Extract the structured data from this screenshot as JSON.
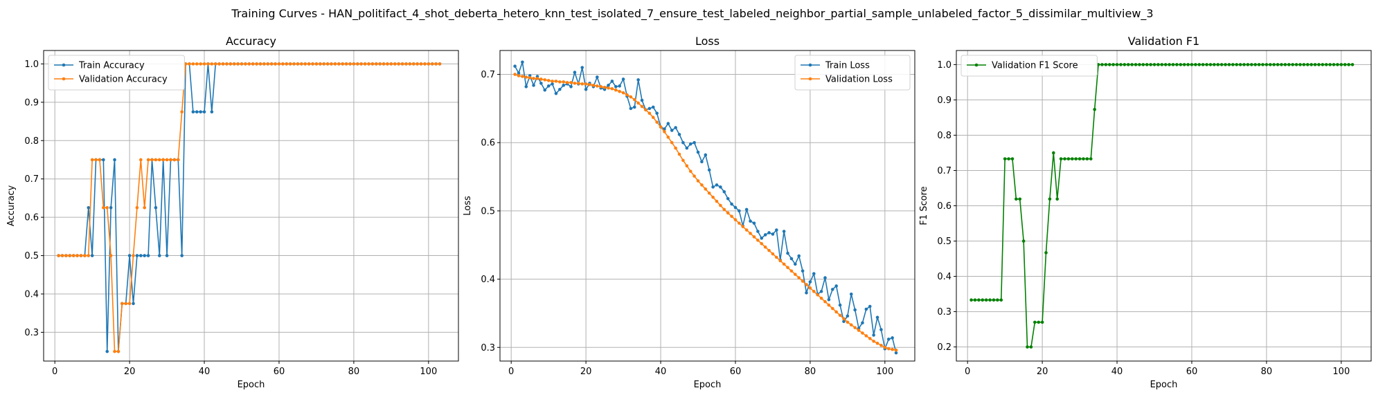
{
  "figure": {
    "title": "Training Curves - HAN_politifact_4_shot_deberta_hetero_knn_test_isolated_7_ensure_test_labeled_neighbor_partial_sample_unlabeled_factor_5_dissimilar_multiview_3"
  },
  "colors": {
    "blue": "#1f77b4",
    "orange": "#ff7f0e",
    "green": "#008000",
    "grid": "#b0b0b0"
  },
  "chart_data": [
    {
      "type": "line",
      "title": "Accuracy",
      "xlabel": "Epoch",
      "ylabel": "Accuracy",
      "xlim": [
        -3,
        108
      ],
      "ylim": [
        0.225,
        1.035
      ],
      "xticks": [
        0,
        20,
        40,
        60,
        80,
        100
      ],
      "yticks": [
        0.3,
        0.4,
        0.5,
        0.6,
        0.7,
        0.8,
        0.9,
        1.0
      ],
      "grid": true,
      "legend": "upper left",
      "x": [
        1,
        2,
        3,
        4,
        5,
        6,
        7,
        8,
        9,
        10,
        11,
        12,
        13,
        14,
        15,
        16,
        17,
        18,
        19,
        20,
        21,
        22,
        23,
        24,
        25,
        26,
        27,
        28,
        29,
        30,
        31,
        32,
        33,
        34,
        35,
        36,
        37,
        38,
        39,
        40,
        41,
        42,
        43,
        44,
        45,
        46,
        47,
        48,
        49,
        50,
        51,
        52,
        53,
        54,
        55,
        56,
        57,
        58,
        59,
        60,
        61,
        62,
        63,
        64,
        65,
        66,
        67,
        68,
        69,
        70,
        71,
        72,
        73,
        74,
        75,
        76,
        77,
        78,
        79,
        80,
        81,
        82,
        83,
        84,
        85,
        86,
        87,
        88,
        89,
        90,
        91,
        92,
        93,
        94,
        95,
        96,
        97,
        98,
        99,
        100,
        101,
        102,
        103
      ],
      "series": [
        {
          "name": "Train Accuracy",
          "color": "#1f77b4",
          "values": [
            0.5,
            0.5,
            0.5,
            0.5,
            0.5,
            0.5,
            0.5,
            0.5,
            0.625,
            0.5,
            0.75,
            0.75,
            0.75,
            0.25,
            0.625,
            0.75,
            0.25,
            0.375,
            0.375,
            0.5,
            0.375,
            0.5,
            0.5,
            0.5,
            0.5,
            0.75,
            0.625,
            0.5,
            0.75,
            0.5,
            0.75,
            0.75,
            0.75,
            0.5,
            1.0,
            1.0,
            0.875,
            0.875,
            0.875,
            0.875,
            1.0,
            0.875,
            1.0,
            1.0,
            1.0,
            1.0,
            1.0,
            1.0,
            1.0,
            1.0,
            1.0,
            1.0,
            1.0,
            1.0,
            1.0,
            1.0,
            1.0,
            1.0,
            1.0,
            1.0,
            1.0,
            1.0,
            1.0,
            1.0,
            1.0,
            1.0,
            1.0,
            1.0,
            1.0,
            1.0,
            1.0,
            1.0,
            1.0,
            1.0,
            1.0,
            1.0,
            1.0,
            1.0,
            1.0,
            1.0,
            1.0,
            1.0,
            1.0,
            1.0,
            1.0,
            1.0,
            1.0,
            1.0,
            1.0,
            1.0,
            1.0,
            1.0,
            1.0,
            1.0,
            1.0,
            1.0,
            1.0,
            1.0,
            1.0,
            1.0,
            1.0,
            1.0,
            1.0
          ]
        },
        {
          "name": "Validation Accuracy",
          "color": "#ff7f0e",
          "values": [
            0.5,
            0.5,
            0.5,
            0.5,
            0.5,
            0.5,
            0.5,
            0.5,
            0.5,
            0.75,
            0.75,
            0.75,
            0.625,
            0.625,
            0.5,
            0.25,
            0.25,
            0.375,
            0.375,
            0.375,
            0.5,
            0.625,
            0.75,
            0.625,
            0.75,
            0.75,
            0.75,
            0.75,
            0.75,
            0.75,
            0.75,
            0.75,
            0.75,
            0.875,
            1.0,
            1.0,
            1.0,
            1.0,
            1.0,
            1.0,
            1.0,
            1.0,
            1.0,
            1.0,
            1.0,
            1.0,
            1.0,
            1.0,
            1.0,
            1.0,
            1.0,
            1.0,
            1.0,
            1.0,
            1.0,
            1.0,
            1.0,
            1.0,
            1.0,
            1.0,
            1.0,
            1.0,
            1.0,
            1.0,
            1.0,
            1.0,
            1.0,
            1.0,
            1.0,
            1.0,
            1.0,
            1.0,
            1.0,
            1.0,
            1.0,
            1.0,
            1.0,
            1.0,
            1.0,
            1.0,
            1.0,
            1.0,
            1.0,
            1.0,
            1.0,
            1.0,
            1.0,
            1.0,
            1.0,
            1.0,
            1.0,
            1.0,
            1.0,
            1.0,
            1.0,
            1.0,
            1.0,
            1.0,
            1.0,
            1.0,
            1.0,
            1.0,
            1.0
          ]
        }
      ]
    },
    {
      "type": "line",
      "title": "Loss",
      "xlabel": "Epoch",
      "ylabel": "Loss",
      "xlim": [
        -3,
        108
      ],
      "ylim": [
        0.28,
        0.735
      ],
      "xticks": [
        0,
        20,
        40,
        60,
        80,
        100
      ],
      "yticks": [
        0.3,
        0.4,
        0.5,
        0.6,
        0.7
      ],
      "grid": true,
      "legend": "upper right",
      "x": [
        1,
        2,
        3,
        4,
        5,
        6,
        7,
        8,
        9,
        10,
        11,
        12,
        13,
        14,
        15,
        16,
        17,
        18,
        19,
        20,
        21,
        22,
        23,
        24,
        25,
        26,
        27,
        28,
        29,
        30,
        31,
        32,
        33,
        34,
        35,
        36,
        37,
        38,
        39,
        40,
        41,
        42,
        43,
        44,
        45,
        46,
        47,
        48,
        49,
        50,
        51,
        52,
        53,
        54,
        55,
        56,
        57,
        58,
        59,
        60,
        61,
        62,
        63,
        64,
        65,
        66,
        67,
        68,
        69,
        70,
        71,
        72,
        73,
        74,
        75,
        76,
        77,
        78,
        79,
        80,
        81,
        82,
        83,
        84,
        85,
        86,
        87,
        88,
        89,
        90,
        91,
        92,
        93,
        94,
        95,
        96,
        97,
        98,
        99,
        100,
        101,
        102,
        103
      ],
      "series": [
        {
          "name": "Train Loss",
          "color": "#1f77b4",
          "values": [
            0.712,
            0.702,
            0.718,
            0.682,
            0.698,
            0.684,
            0.697,
            0.687,
            0.677,
            0.683,
            0.686,
            0.672,
            0.678,
            0.684,
            0.686,
            0.682,
            0.703,
            0.686,
            0.71,
            0.678,
            0.687,
            0.682,
            0.696,
            0.68,
            0.678,
            0.684,
            0.69,
            0.682,
            0.683,
            0.693,
            0.668,
            0.65,
            0.652,
            0.692,
            0.662,
            0.648,
            0.65,
            0.652,
            0.643,
            0.623,
            0.62,
            0.628,
            0.618,
            0.622,
            0.612,
            0.6,
            0.592,
            0.598,
            0.6,
            0.586,
            0.572,
            0.582,
            0.56,
            0.535,
            0.538,
            0.535,
            0.528,
            0.518,
            0.51,
            0.505,
            0.5,
            0.478,
            0.502,
            0.485,
            0.482,
            0.47,
            0.46,
            0.465,
            0.468,
            0.466,
            0.472,
            0.428,
            0.47,
            0.438,
            0.43,
            0.422,
            0.434,
            0.412,
            0.38,
            0.396,
            0.408,
            0.378,
            0.382,
            0.402,
            0.37,
            0.385,
            0.39,
            0.362,
            0.338,
            0.346,
            0.378,
            0.355,
            0.328,
            0.336,
            0.356,
            0.36,
            0.318,
            0.344,
            0.326,
            0.298,
            0.312,
            0.314,
            0.292
          ]
        },
        {
          "name": "Validation Loss",
          "color": "#ff7f0e",
          "values": [
            0.7,
            0.698,
            0.697,
            0.696,
            0.695,
            0.694,
            0.694,
            0.693,
            0.692,
            0.691,
            0.69,
            0.69,
            0.689,
            0.689,
            0.688,
            0.688,
            0.687,
            0.687,
            0.686,
            0.686,
            0.685,
            0.684,
            0.683,
            0.682,
            0.681,
            0.68,
            0.679,
            0.677,
            0.675,
            0.673,
            0.67,
            0.667,
            0.663,
            0.658,
            0.653,
            0.648,
            0.643,
            0.637,
            0.63,
            0.623,
            0.616,
            0.608,
            0.6,
            0.592,
            0.583,
            0.574,
            0.566,
            0.558,
            0.551,
            0.544,
            0.538,
            0.532,
            0.526,
            0.52,
            0.514,
            0.508,
            0.502,
            0.497,
            0.492,
            0.487,
            0.482,
            0.477,
            0.472,
            0.467,
            0.462,
            0.457,
            0.452,
            0.447,
            0.442,
            0.437,
            0.432,
            0.427,
            0.422,
            0.417,
            0.412,
            0.407,
            0.402,
            0.397,
            0.392,
            0.387,
            0.382,
            0.377,
            0.372,
            0.367,
            0.362,
            0.357,
            0.352,
            0.347,
            0.342,
            0.337,
            0.333,
            0.329,
            0.325,
            0.321,
            0.317,
            0.313,
            0.309,
            0.306,
            0.303,
            0.3,
            0.298,
            0.297,
            0.296
          ]
        }
      ]
    },
    {
      "type": "line",
      "title": "Validation F1",
      "xlabel": "Epoch",
      "ylabel": "F1 Score",
      "xlim": [
        -3,
        108
      ],
      "ylim": [
        0.16,
        1.04
      ],
      "xticks": [
        0,
        20,
        40,
        60,
        80,
        100
      ],
      "yticks": [
        0.2,
        0.3,
        0.4,
        0.5,
        0.6,
        0.7,
        0.8,
        0.9,
        1.0
      ],
      "grid": true,
      "legend": "upper left",
      "x": [
        1,
        2,
        3,
        4,
        5,
        6,
        7,
        8,
        9,
        10,
        11,
        12,
        13,
        14,
        15,
        16,
        17,
        18,
        19,
        20,
        21,
        22,
        23,
        24,
        25,
        26,
        27,
        28,
        29,
        30,
        31,
        32,
        33,
        34,
        35,
        36,
        37,
        38,
        39,
        40,
        41,
        42,
        43,
        44,
        45,
        46,
        47,
        48,
        49,
        50,
        51,
        52,
        53,
        54,
        55,
        56,
        57,
        58,
        59,
        60,
        61,
        62,
        63,
        64,
        65,
        66,
        67,
        68,
        69,
        70,
        71,
        72,
        73,
        74,
        75,
        76,
        77,
        78,
        79,
        80,
        81,
        82,
        83,
        84,
        85,
        86,
        87,
        88,
        89,
        90,
        91,
        92,
        93,
        94,
        95,
        96,
        97,
        98,
        99,
        100,
        101,
        102,
        103
      ],
      "series": [
        {
          "name": "Validation F1 Score",
          "color": "#008000",
          "values": [
            0.333,
            0.333,
            0.333,
            0.333,
            0.333,
            0.333,
            0.333,
            0.333,
            0.333,
            0.733,
            0.733,
            0.733,
            0.619,
            0.619,
            0.5,
            0.2,
            0.2,
            0.27,
            0.27,
            0.27,
            0.467,
            0.619,
            0.75,
            0.619,
            0.733,
            0.733,
            0.733,
            0.733,
            0.733,
            0.733,
            0.733,
            0.733,
            0.733,
            0.873,
            1.0,
            1.0,
            1.0,
            1.0,
            1.0,
            1.0,
            1.0,
            1.0,
            1.0,
            1.0,
            1.0,
            1.0,
            1.0,
            1.0,
            1.0,
            1.0,
            1.0,
            1.0,
            1.0,
            1.0,
            1.0,
            1.0,
            1.0,
            1.0,
            1.0,
            1.0,
            1.0,
            1.0,
            1.0,
            1.0,
            1.0,
            1.0,
            1.0,
            1.0,
            1.0,
            1.0,
            1.0,
            1.0,
            1.0,
            1.0,
            1.0,
            1.0,
            1.0,
            1.0,
            1.0,
            1.0,
            1.0,
            1.0,
            1.0,
            1.0,
            1.0,
            1.0,
            1.0,
            1.0,
            1.0,
            1.0,
            1.0,
            1.0,
            1.0,
            1.0,
            1.0,
            1.0,
            1.0,
            1.0,
            1.0,
            1.0,
            1.0,
            1.0,
            1.0
          ]
        }
      ]
    }
  ]
}
